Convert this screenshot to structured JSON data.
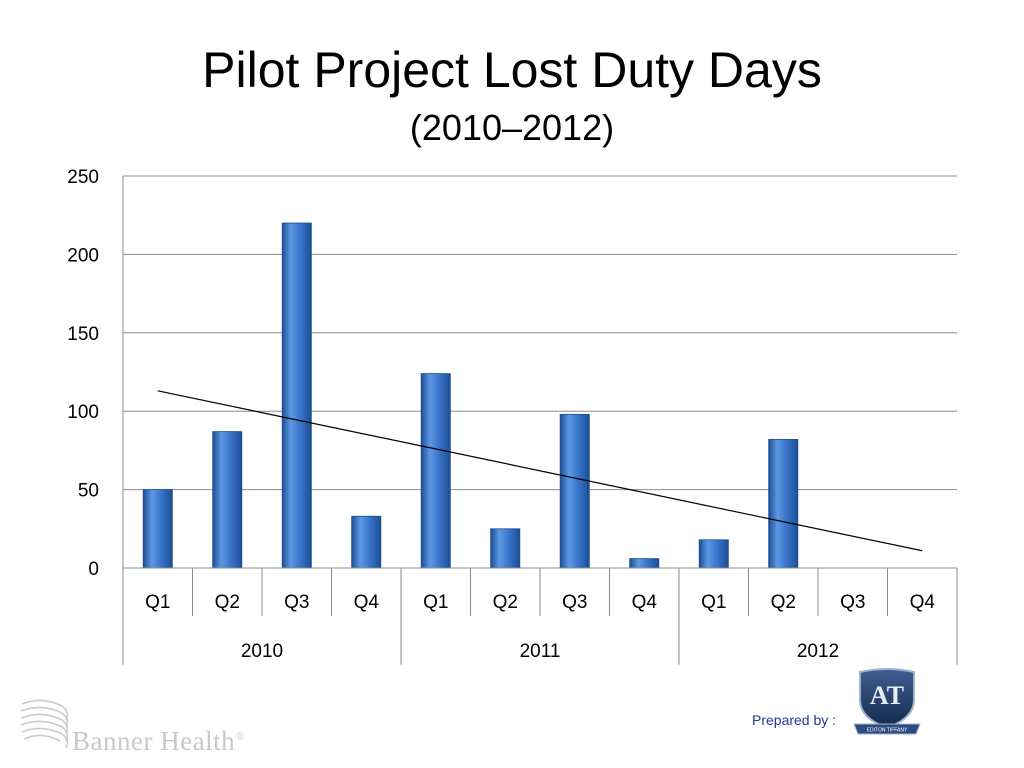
{
  "slide": {
    "title": "Pilot Project Lost Duty Days",
    "subtitle": "(2010–2012)",
    "prepared_by": "Prepared by :",
    "left_logo_text": "Banner Health",
    "left_logo_mark": "®",
    "right_logo_letters": "AT",
    "right_logo_banner": "EDITON TIFFANY"
  },
  "chart_data": {
    "type": "bar",
    "title": "Pilot Project Lost Duty Days",
    "subtitle": "(2010–2012)",
    "categories": [
      "Q1",
      "Q2",
      "Q3",
      "Q4",
      "Q1",
      "Q2",
      "Q3",
      "Q4",
      "Q1",
      "Q2",
      "Q3",
      "Q4"
    ],
    "groups": [
      {
        "label": "2010",
        "count": 4
      },
      {
        "label": "2011",
        "count": 4
      },
      {
        "label": "2012",
        "count": 4
      }
    ],
    "values": [
      50,
      87,
      220,
      33,
      124,
      25,
      98,
      6,
      18,
      82,
      0,
      0
    ],
    "ylim": [
      0,
      250
    ],
    "yticks": [
      0,
      50,
      100,
      150,
      200,
      250
    ],
    "trendline": {
      "type": "linear",
      "start": 113,
      "end": 11
    },
    "grid": true,
    "legend": "none",
    "colors": {
      "bar": "#3a76cc",
      "bar_dark": "#1d4e96",
      "bar_light": "#5f98e2",
      "grid": "#8c8c8c",
      "trend": "#000000"
    }
  }
}
